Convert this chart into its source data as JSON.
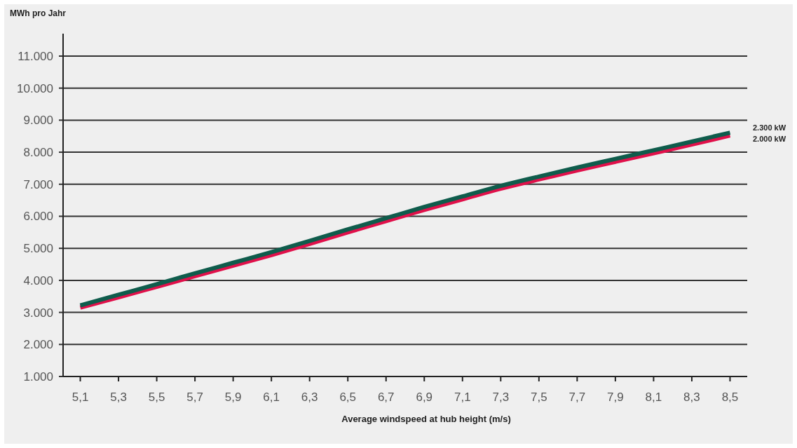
{
  "chart_data": {
    "type": "line",
    "ylabel": "MWh pro Jahr",
    "xlabel": "Average windspeed at hub height (m/s)",
    "categories": [
      "5,1",
      "5,3",
      "5,5",
      "5,7",
      "5,9",
      "6,1",
      "6,3",
      "6,5",
      "6,7",
      "6,9",
      "7,1",
      "7,3",
      "7,5",
      "7,7",
      "7,9",
      "8,1",
      "8,3",
      "8,5"
    ],
    "series": [
      {
        "name": "2.000 kW",
        "color": "#e0104a",
        "values": [
          3150,
          3470,
          3800,
          4130,
          4460,
          4790,
          5140,
          5500,
          5850,
          6200,
          6530,
          6860,
          7150,
          7430,
          7700,
          7970,
          8240,
          8520
        ]
      },
      {
        "name": "2.300 kW",
        "color": "#0f5c4c",
        "values": [
          3220,
          3550,
          3880,
          4220,
          4550,
          4880,
          5230,
          5590,
          5940,
          6290,
          6620,
          6950,
          7240,
          7520,
          7790,
          8060,
          8330,
          8610
        ]
      }
    ],
    "ylim": [
      1000,
      11700
    ],
    "yticks": [
      {
        "value": 1000,
        "label": "1.000"
      },
      {
        "value": 2000,
        "label": "2.000"
      },
      {
        "value": 3000,
        "label": "3.000"
      },
      {
        "value": 4000,
        "label": "4.000"
      },
      {
        "value": 5000,
        "label": "5.000"
      },
      {
        "value": 6000,
        "label": "6.000"
      },
      {
        "value": 7000,
        "label": "7.000"
      },
      {
        "value": 8000,
        "label": "8.000"
      },
      {
        "value": 9000,
        "label": "9.000"
      },
      {
        "value": 10000,
        "label": "10.000"
      },
      {
        "value": 11000,
        "label": "11.000"
      }
    ],
    "grid": "y",
    "legend": false,
    "marker": "none",
    "line_style": "solid"
  }
}
